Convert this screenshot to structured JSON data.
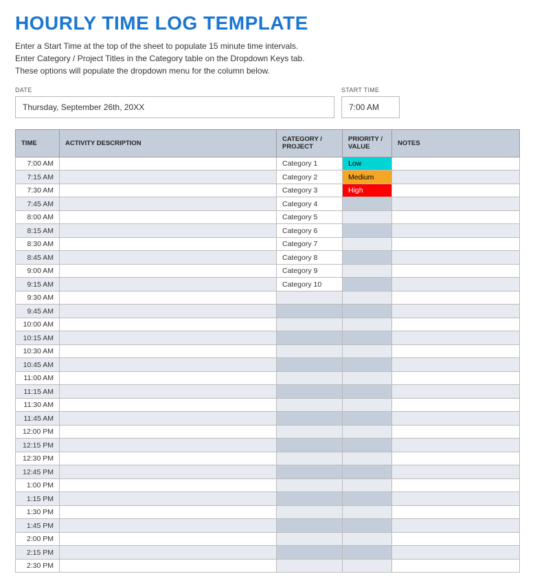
{
  "title": "HOURLY TIME LOG TEMPLATE",
  "instructions": [
    "Enter a Start Time at the top of the sheet to populate 15 minute time intervals.",
    "Enter Category / Project Titles in the Category table on the Dropdown Keys tab.",
    "These options will populate the dropdown menu for the column below."
  ],
  "meta": {
    "date_label": "DATE",
    "start_time_label": "START TIME",
    "date_value": "Thursday, September 26th, 20XX",
    "start_time_value": "7:00 AM"
  },
  "columns": {
    "time": "TIME",
    "activity": "ACTIVITY DESCRIPTION",
    "category": "CATEGORY / PROJECT",
    "priority": "PRIORITY / VALUE",
    "notes": "NOTES"
  },
  "priority_colors": {
    "Low": {
      "bg": "#00d4d4",
      "fg": "#000000"
    },
    "Medium": {
      "bg": "#f5a623",
      "fg": "#000000"
    },
    "High": {
      "bg": "#ff0000",
      "fg": "#ffffff"
    }
  },
  "rows": [
    {
      "time": "7:00 AM",
      "activity": "",
      "category": "Category 1",
      "priority": "Low",
      "notes": ""
    },
    {
      "time": "7:15 AM",
      "activity": "",
      "category": "Category 2",
      "priority": "Medium",
      "notes": ""
    },
    {
      "time": "7:30 AM",
      "activity": "",
      "category": "Category 3",
      "priority": "High",
      "notes": ""
    },
    {
      "time": "7:45 AM",
      "activity": "",
      "category": "Category 4",
      "priority": "",
      "notes": ""
    },
    {
      "time": "8:00 AM",
      "activity": "",
      "category": "Category 5",
      "priority": "",
      "notes": ""
    },
    {
      "time": "8:15 AM",
      "activity": "",
      "category": "Category 6",
      "priority": "",
      "notes": ""
    },
    {
      "time": "8:30 AM",
      "activity": "",
      "category": "Category 7",
      "priority": "",
      "notes": ""
    },
    {
      "time": "8:45 AM",
      "activity": "",
      "category": "Category 8",
      "priority": "",
      "notes": ""
    },
    {
      "time": "9:00 AM",
      "activity": "",
      "category": "Category 9",
      "priority": "",
      "notes": ""
    },
    {
      "time": "9:15 AM",
      "activity": "",
      "category": "Category 10",
      "priority": "",
      "notes": ""
    },
    {
      "time": "9:30 AM",
      "activity": "",
      "category": "",
      "priority": "",
      "notes": ""
    },
    {
      "time": "9:45 AM",
      "activity": "",
      "category": "",
      "priority": "",
      "notes": ""
    },
    {
      "time": "10:00 AM",
      "activity": "",
      "category": "",
      "priority": "",
      "notes": ""
    },
    {
      "time": "10:15 AM",
      "activity": "",
      "category": "",
      "priority": "",
      "notes": ""
    },
    {
      "time": "10:30 AM",
      "activity": "",
      "category": "",
      "priority": "",
      "notes": ""
    },
    {
      "time": "10:45 AM",
      "activity": "",
      "category": "",
      "priority": "",
      "notes": ""
    },
    {
      "time": "11:00 AM",
      "activity": "",
      "category": "",
      "priority": "",
      "notes": ""
    },
    {
      "time": "11:15 AM",
      "activity": "",
      "category": "",
      "priority": "",
      "notes": ""
    },
    {
      "time": "11:30 AM",
      "activity": "",
      "category": "",
      "priority": "",
      "notes": ""
    },
    {
      "time": "11:45 AM",
      "activity": "",
      "category": "",
      "priority": "",
      "notes": ""
    },
    {
      "time": "12:00 PM",
      "activity": "",
      "category": "",
      "priority": "",
      "notes": ""
    },
    {
      "time": "12:15 PM",
      "activity": "",
      "category": "",
      "priority": "",
      "notes": ""
    },
    {
      "time": "12:30 PM",
      "activity": "",
      "category": "",
      "priority": "",
      "notes": ""
    },
    {
      "time": "12:45 PM",
      "activity": "",
      "category": "",
      "priority": "",
      "notes": ""
    },
    {
      "time": "1:00 PM",
      "activity": "",
      "category": "",
      "priority": "",
      "notes": ""
    },
    {
      "time": "1:15 PM",
      "activity": "",
      "category": "",
      "priority": "",
      "notes": ""
    },
    {
      "time": "1:30 PM",
      "activity": "",
      "category": "",
      "priority": "",
      "notes": ""
    },
    {
      "time": "1:45 PM",
      "activity": "",
      "category": "",
      "priority": "",
      "notes": ""
    },
    {
      "time": "2:00 PM",
      "activity": "",
      "category": "",
      "priority": "",
      "notes": ""
    },
    {
      "time": "2:15 PM",
      "activity": "",
      "category": "",
      "priority": "",
      "notes": ""
    },
    {
      "time": "2:30 PM",
      "activity": "",
      "category": "",
      "priority": "",
      "notes": ""
    }
  ]
}
